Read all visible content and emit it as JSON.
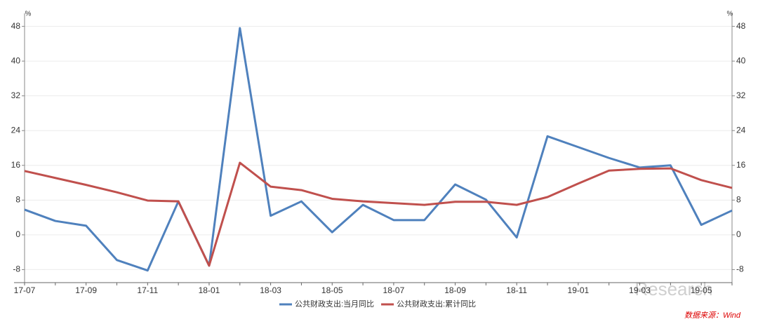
{
  "chart_data": {
    "type": "line",
    "y_unit": "%",
    "y2_unit": "%",
    "categories": [
      "17-07",
      null,
      "17-09",
      null,
      "17-11",
      null,
      "18-01",
      null,
      "18-03",
      null,
      "18-05",
      null,
      "18-07",
      null,
      "18-09",
      null,
      "18-11",
      null,
      "19-01",
      null,
      "19-03",
      null,
      "19-05",
      null
    ],
    "series": [
      {
        "name": "公共财政支出:当月同比",
        "color": "#4f81bd",
        "values": [
          5.8,
          3.2,
          2.1,
          -5.8,
          -8.2,
          7.7,
          -7.1,
          47.6,
          4.4,
          7.7,
          0.6,
          6.9,
          3.4,
          3.4,
          11.6,
          8.1,
          -0.6,
          22.7,
          20.2,
          17.7,
          15.5,
          16.0,
          2.3,
          5.6
        ]
      },
      {
        "name": "公共财政支出:累计同比",
        "color": "#c0504d",
        "values": [
          14.7,
          13.1,
          11.5,
          9.8,
          7.9,
          7.7,
          -7.1,
          16.6,
          11.1,
          10.3,
          8.3,
          7.7,
          7.3,
          6.9,
          7.6,
          7.6,
          6.9,
          8.7,
          11.8,
          14.8,
          15.2,
          15.3,
          12.6,
          10.8
        ]
      }
    ],
    "ylim": [
      -11,
      51
    ],
    "yticks": [
      -8,
      0,
      8,
      16,
      24,
      32,
      40,
      48
    ],
    "y2lim": [
      -11,
      51
    ],
    "y2ticks": [
      -8,
      0,
      8,
      16,
      24,
      32,
      40,
      48
    ],
    "grid": true,
    "legend": "bottom",
    "source": "数据来源：Wind",
    "watermark": "Research"
  }
}
